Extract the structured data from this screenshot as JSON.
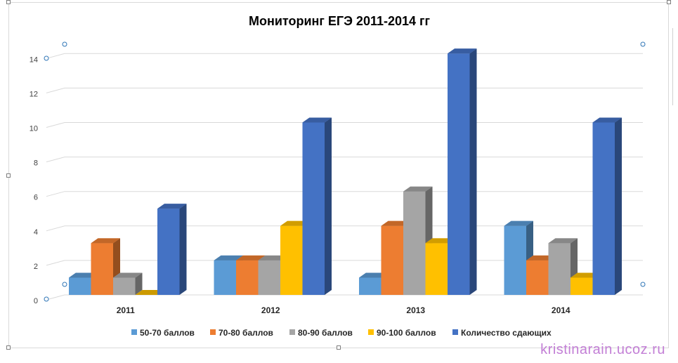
{
  "chart_data": {
    "type": "bar",
    "title": "Мониторинг ЕГЭ 2011-2014 гг",
    "categories": [
      "2011",
      "2012",
      "2013",
      "2014"
    ],
    "series": [
      {
        "name": "50-70 баллов",
        "color": "#5b9bd5",
        "values": [
          1,
          2,
          1,
          4
        ]
      },
      {
        "name": "70-80 баллов",
        "color": "#ed7d31",
        "values": [
          3,
          2,
          4,
          2
        ]
      },
      {
        "name": "80-90 баллов",
        "color": "#a5a5a5",
        "values": [
          1,
          2,
          6,
          3
        ]
      },
      {
        "name": "90-100 баллов",
        "color": "#ffc000",
        "values": [
          0,
          4,
          3,
          1
        ]
      },
      {
        "name": "Количество сдающих",
        "color": "#4472c4",
        "values": [
          5,
          10,
          14,
          10
        ]
      }
    ],
    "ylim": [
      0,
      14
    ],
    "yticks": [
      "0",
      "2",
      "4",
      "6",
      "8",
      "10",
      "12",
      "14"
    ],
    "grid": true,
    "legend": "bottom",
    "style": "3d-column"
  },
  "watermark": "kristinarain.ucoz.ru"
}
